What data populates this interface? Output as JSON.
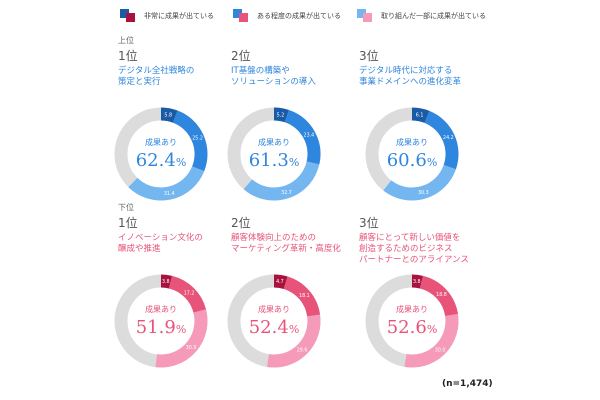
{
  "legend": [
    {
      "label": "非常に成果が出ている",
      "colors": [
        "#1a5ba8",
        "#a8123e"
      ]
    },
    {
      "label": "ある程度の成果が出ている",
      "colors": [
        "#2e86de",
        "#e8537a"
      ]
    },
    {
      "label": "取り組んだ一部に成果が出ている",
      "colors": [
        "#74b6f0",
        "#f59ab8"
      ]
    }
  ],
  "sections": {
    "top": "上位",
    "bottom": "下位"
  },
  "center_label": "成果あり",
  "note": "(n=1,474)",
  "chart_data": [
    {
      "type": "pie",
      "group": "上位",
      "rank": "1位",
      "title_lines": [
        "デジタル全社戦略の",
        "策定と実行"
      ],
      "total": "62.4",
      "unit": "%",
      "labels": [
        "5.8",
        "25.2",
        "31.4"
      ],
      "values": [
        5.8,
        25.2,
        31.4
      ],
      "palette": "blue"
    },
    {
      "type": "pie",
      "group": "上位",
      "rank": "2位",
      "title_lines": [
        "IT基盤の構築や",
        "ソリューションの導入"
      ],
      "total": "61.3",
      "unit": "%",
      "labels": [
        "5.2",
        "23.4",
        "32.7"
      ],
      "values": [
        5.2,
        23.4,
        32.7
      ],
      "palette": "blue"
    },
    {
      "type": "pie",
      "group": "上位",
      "rank": "3位",
      "title_lines": [
        "デジタル時代に対応する",
        "事業ドメインへの進化変革"
      ],
      "total": "60.6",
      "unit": "%",
      "labels": [
        "6.1",
        "24.2",
        "30.3"
      ],
      "values": [
        6.1,
        24.2,
        30.3
      ],
      "palette": "blue"
    },
    {
      "type": "pie",
      "group": "下位",
      "rank": "1位",
      "title_lines": [
        "イノベーション文化の",
        "醸成や推進"
      ],
      "total": "51.9",
      "unit": "%",
      "labels": [
        "3.8",
        "17.2",
        "30.9"
      ],
      "values": [
        3.8,
        17.2,
        30.9
      ],
      "palette": "pink"
    },
    {
      "type": "pie",
      "group": "下位",
      "rank": "2位",
      "title_lines": [
        "顧客体験向上のための",
        "マーケティング革新・高度化"
      ],
      "total": "52.4",
      "unit": "%",
      "labels": [
        "4.7",
        "18.1",
        "29.6"
      ],
      "values": [
        4.7,
        18.1,
        29.6
      ],
      "palette": "pink"
    },
    {
      "type": "pie",
      "group": "下位",
      "rank": "3位",
      "title_lines": [
        "顧客にとって新しい価値を",
        "創造するためのビジネス",
        "パートナーとのアライアンス"
      ],
      "total": "52.6",
      "unit": "%",
      "labels": [
        "3.8",
        "18.8",
        "30.0"
      ],
      "values": [
        3.8,
        18.8,
        30.0
      ],
      "palette": "pink"
    }
  ],
  "palettes": {
    "blue": [
      "#1a5ba8",
      "#2e86de",
      "#74b6f0"
    ],
    "pink": [
      "#a8123e",
      "#e8537a",
      "#f59ab8"
    ],
    "rest": "#dcdcdc",
    "blue_text": "#2e86de",
    "pink_text": "#e8537a"
  }
}
